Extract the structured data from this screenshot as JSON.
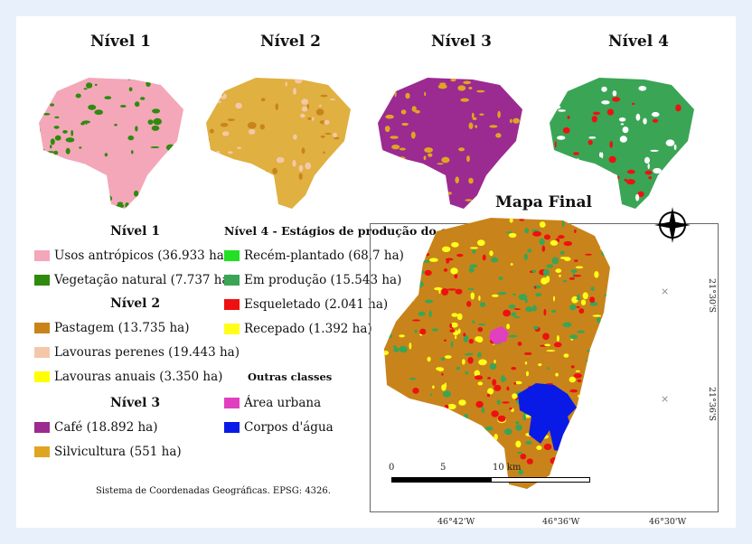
{
  "titles": {
    "level1": "Nível 1",
    "level2": "Nível 2",
    "level3": "Nível 3",
    "level4": "Nível 4",
    "final": "Mapa Final"
  },
  "legend": {
    "level1": {
      "heading": "Nível 1",
      "items": [
        {
          "label": "Usos antrópicos (36.933 ha)",
          "color": "#f4a7b9"
        },
        {
          "label": "Vegetação natural (7.737 ha)",
          "color": "#2e8b0e"
        }
      ]
    },
    "level2": {
      "heading": "Nível 2",
      "items": [
        {
          "label": "Pastagem (13.735 ha)",
          "color": "#c8841a"
        },
        {
          "label": "Lavouras perenes (19.443 ha)",
          "color": "#f5c7a8"
        },
        {
          "label": "Lavouras anuais (3.350 ha)",
          "color": "#ffff00"
        }
      ]
    },
    "level3": {
      "heading": "Nível 3",
      "items": [
        {
          "label": "Café (18.892 ha)",
          "color": "#9b2a91"
        },
        {
          "label": "Silvicultura (551 ha)",
          "color": "#e0a520"
        }
      ]
    },
    "level4": {
      "heading": "Nível 4 - Estágios de produção do café:",
      "items": [
        {
          "label": "Recém-plantado (68,7 ha)",
          "color": "#22e022"
        },
        {
          "label": "Em produção (15.543 ha)",
          "color": "#3aa555"
        },
        {
          "label": "Esqueletado (2.041 ha)",
          "color": "#ee1111"
        },
        {
          "label": "Recepado (1.392 ha)",
          "color": "#ffff1a"
        }
      ]
    },
    "other": {
      "heading": "Outras classes",
      "items": [
        {
          "label": "Área urbana",
          "color": "#e040c0"
        },
        {
          "label": "Corpos d'água",
          "color": "#0a1ae6"
        }
      ]
    }
  },
  "footnote": "Sistema de Coordenadas Geográficas. EPSG: 4326.",
  "scale_labels": [
    "0",
    "5",
    "10 km"
  ],
  "coords": {
    "lon": [
      "46°42'W",
      "46°36'W",
      "46°30'W"
    ],
    "lat": [
      "21°30'S",
      "21°36'S"
    ]
  },
  "map_colors": {
    "level1": [
      "#f4a7b9",
      "#2e8b0e"
    ],
    "level2": [
      "#e0b040",
      "#f5c7a8",
      "#c8841a"
    ],
    "level3": [
      "#9b2a91",
      "#e0a520"
    ],
    "level4": [
      "#3aa555",
      "#ffffff",
      "#ee1111"
    ],
    "final": [
      "#c8841a",
      "#3aa555",
      "#ffff1a",
      "#ee1111"
    ]
  }
}
